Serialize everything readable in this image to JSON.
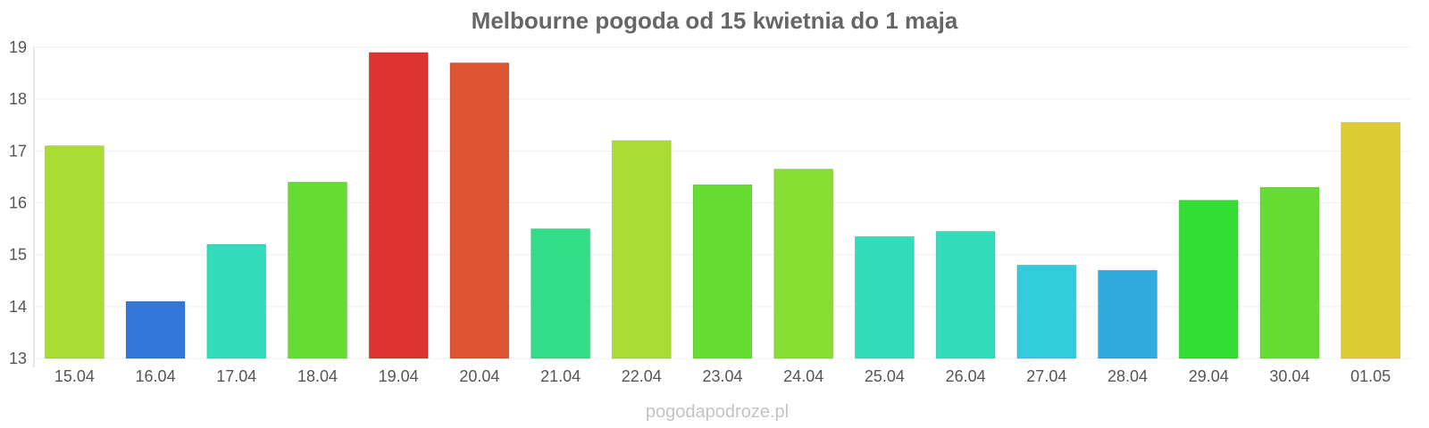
{
  "chart_data": {
    "type": "bar",
    "title": "Melbourne pogoda od 15 kwietnia do 1 maja",
    "xlabel": "",
    "ylabel": "",
    "ylim": [
      13,
      19
    ],
    "yticks": [
      "13",
      "14",
      "15",
      "16",
      "17",
      "18",
      "19"
    ],
    "grid": true,
    "categories": [
      "15.04",
      "16.04",
      "17.04",
      "18.04",
      "19.04",
      "20.04",
      "21.04",
      "22.04",
      "23.04",
      "24.04",
      "25.04",
      "26.04",
      "27.04",
      "28.04",
      "29.04",
      "30.04",
      "01.05"
    ],
    "values": [
      17.1,
      14.1,
      15.2,
      16.4,
      18.9,
      18.7,
      15.5,
      17.2,
      16.35,
      16.65,
      15.35,
      15.45,
      14.8,
      14.7,
      16.05,
      16.3,
      17.55
    ],
    "colors": [
      "#aadd33",
      "#3377dd",
      "#33ddbb",
      "#66dd33",
      "#dd3333",
      "#dd5533",
      "#33dd88",
      "#aadd33",
      "#66dd33",
      "#88dd33",
      "#33ddbb",
      "#33ddbb",
      "#33ccdd",
      "#33aadd",
      "#33dd33",
      "#66dd33",
      "#ddcc33"
    ]
  },
  "watermark": "pogodapodroze.pl"
}
